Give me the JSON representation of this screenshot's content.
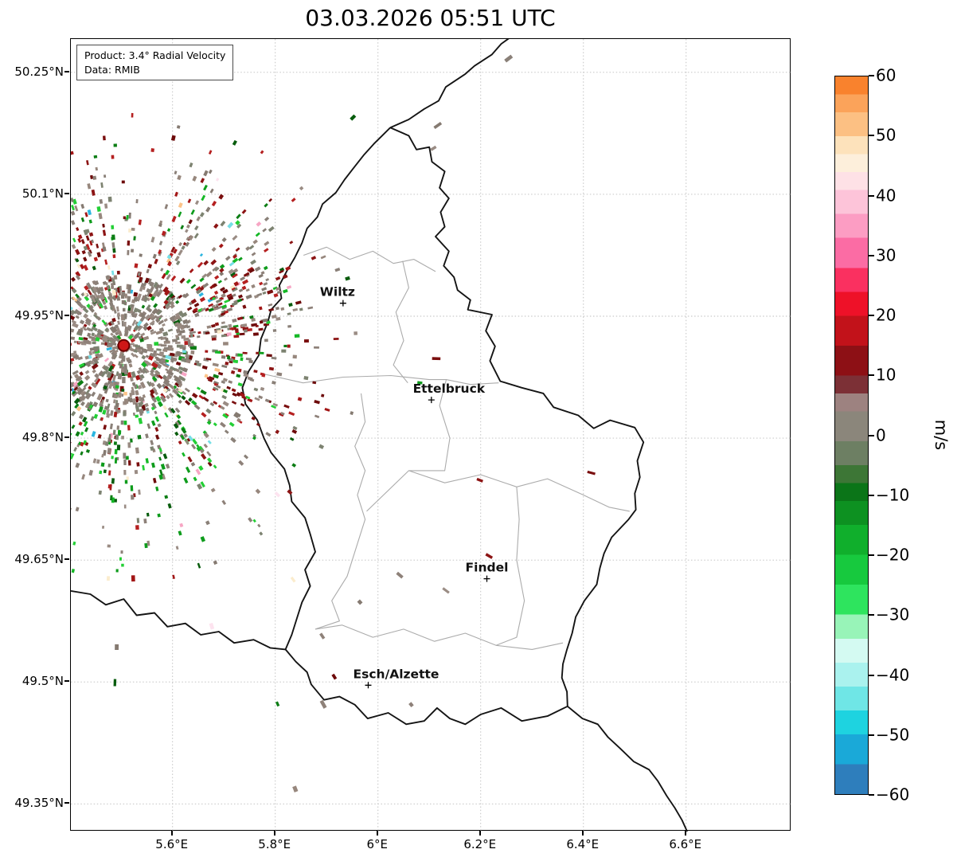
{
  "title": "03.03.2026 05:51 UTC",
  "info_box": {
    "product": "Product: 3.4° Radial Velocity",
    "data_source": "Data: RMIB"
  },
  "axes": {
    "lon_min": 5.402,
    "lon_max": 6.805,
    "lat_min": 49.316,
    "lat_max": 50.291,
    "x_ticks": [
      {
        "value": 5.6,
        "label": "5.6°E"
      },
      {
        "value": 5.8,
        "label": "5.8°E"
      },
      {
        "value": 6.0,
        "label": "6°E"
      },
      {
        "value": 6.2,
        "label": "6.2°E"
      },
      {
        "value": 6.4,
        "label": "6.4°E"
      },
      {
        "value": 6.6,
        "label": "6.6°E"
      }
    ],
    "y_ticks": [
      {
        "value": 50.25,
        "label": "50.25°N"
      },
      {
        "value": 50.1,
        "label": "50.1°N"
      },
      {
        "value": 49.95,
        "label": "49.95°N"
      },
      {
        "value": 49.8,
        "label": "49.8°N"
      },
      {
        "value": 49.65,
        "label": "49.65°N"
      },
      {
        "value": 49.5,
        "label": "49.5°N"
      },
      {
        "value": 49.35,
        "label": "49.35°N"
      }
    ]
  },
  "map": {
    "cities": [
      {
        "name": "Wiltz",
        "lat": 49.966,
        "lon": 5.932,
        "label_dx": -7
      },
      {
        "name": "Ettelbruck",
        "lat": 49.847,
        "lon": 6.104,
        "label_dx": 22
      },
      {
        "name": "Findel",
        "lat": 49.627,
        "lon": 6.212,
        "label_dx": 0
      },
      {
        "name": "Esch/Alzette",
        "lat": 49.496,
        "lon": 5.981,
        "label_dx": 35
      }
    ],
    "radar_site": {
      "lat": 49.914,
      "lon": 5.505,
      "dot_color": "#cf1717",
      "ring_color": "#6b0000"
    },
    "borders": {
      "luxembourg": [
        [
          50.182,
          6.024
        ],
        [
          50.172,
          6.06
        ],
        [
          50.155,
          6.075
        ],
        [
          50.158,
          6.1
        ],
        [
          50.14,
          6.105
        ],
        [
          50.128,
          6.13
        ],
        [
          50.108,
          6.12
        ],
        [
          50.095,
          6.138
        ],
        [
          50.078,
          6.122
        ],
        [
          50.06,
          6.13
        ],
        [
          50.048,
          6.112
        ],
        [
          50.03,
          6.138
        ],
        [
          50.012,
          6.128
        ],
        [
          49.998,
          6.148
        ],
        [
          49.982,
          6.155
        ],
        [
          49.97,
          6.18
        ],
        [
          49.958,
          6.175
        ],
        [
          49.952,
          6.222
        ],
        [
          49.932,
          6.21
        ],
        [
          49.913,
          6.228
        ],
        [
          49.895,
          6.218
        ],
        [
          49.87,
          6.238
        ],
        [
          49.862,
          6.28
        ],
        [
          49.855,
          6.322
        ],
        [
          49.838,
          6.342
        ],
        [
          49.828,
          6.39
        ],
        [
          49.812,
          6.42
        ],
        [
          49.822,
          6.452
        ],
        [
          49.813,
          6.5
        ],
        [
          49.795,
          6.517
        ],
        [
          49.772,
          6.505
        ],
        [
          49.752,
          6.51
        ],
        [
          49.732,
          6.5
        ],
        [
          49.712,
          6.502
        ],
        [
          49.7,
          6.488
        ],
        [
          49.678,
          6.455
        ],
        [
          49.658,
          6.44
        ],
        [
          49.64,
          6.432
        ],
        [
          49.62,
          6.426
        ],
        [
          49.6,
          6.402
        ],
        [
          49.58,
          6.385
        ],
        [
          49.56,
          6.378
        ],
        [
          49.54,
          6.368
        ],
        [
          49.522,
          6.36
        ],
        [
          49.505,
          6.358
        ],
        [
          49.488,
          6.368
        ],
        [
          49.47,
          6.369
        ],
        [
          49.458,
          6.33
        ],
        [
          49.452,
          6.28
        ],
        [
          49.468,
          6.24
        ],
        [
          49.46,
          6.2
        ],
        [
          49.448,
          6.17
        ],
        [
          49.455,
          6.14
        ],
        [
          49.468,
          6.115
        ],
        [
          49.452,
          6.09
        ],
        [
          49.448,
          6.055
        ],
        [
          49.462,
          6.02
        ],
        [
          49.455,
          5.98
        ],
        [
          49.472,
          5.955
        ],
        [
          49.482,
          5.925
        ],
        [
          49.478,
          5.895
        ],
        [
          49.497,
          5.87
        ],
        [
          49.512,
          5.862
        ],
        [
          49.525,
          5.84
        ],
        [
          49.54,
          5.82
        ],
        [
          49.558,
          5.832
        ],
        [
          49.578,
          5.842
        ],
        [
          49.598,
          5.852
        ],
        [
          49.618,
          5.868
        ],
        [
          49.638,
          5.858
        ],
        [
          49.66,
          5.878
        ],
        [
          49.682,
          5.868
        ],
        [
          49.702,
          5.858
        ],
        [
          49.722,
          5.832
        ],
        [
          49.742,
          5.828
        ],
        [
          49.762,
          5.818
        ],
        [
          49.782,
          5.792
        ],
        [
          49.8,
          5.778
        ],
        [
          49.822,
          5.765
        ],
        [
          49.842,
          5.742
        ],
        [
          49.862,
          5.736
        ],
        [
          49.882,
          5.748
        ],
        [
          49.902,
          5.768
        ],
        [
          49.922,
          5.772
        ],
        [
          49.942,
          5.785
        ],
        [
          49.958,
          5.792
        ],
        [
          49.972,
          5.812
        ],
        [
          49.988,
          5.808
        ],
        [
          50.005,
          5.822
        ],
        [
          50.022,
          5.838
        ],
        [
          50.04,
          5.852
        ],
        [
          50.058,
          5.862
        ],
        [
          50.072,
          5.882
        ],
        [
          50.088,
          5.892
        ],
        [
          50.102,
          5.918
        ],
        [
          50.118,
          5.935
        ],
        [
          50.132,
          5.952
        ],
        [
          50.148,
          5.972
        ],
        [
          50.162,
          5.992
        ],
        [
          50.172,
          6.008
        ],
        [
          50.182,
          6.024
        ]
      ],
      "be_de_north": [
        [
          50.182,
          6.024
        ],
        [
          50.192,
          6.06
        ],
        [
          50.205,
          6.09
        ],
        [
          50.215,
          6.118
        ],
        [
          50.232,
          6.132
        ],
        [
          50.248,
          6.17
        ],
        [
          50.258,
          6.188
        ],
        [
          50.272,
          6.222
        ],
        [
          50.285,
          6.24
        ],
        [
          50.295,
          6.262
        ]
      ],
      "fr_be_west": [
        [
          49.612,
          5.402
        ],
        [
          49.608,
          5.44
        ],
        [
          49.595,
          5.47
        ],
        [
          49.602,
          5.505
        ],
        [
          49.582,
          5.53
        ],
        [
          49.585,
          5.565
        ],
        [
          49.568,
          5.59
        ],
        [
          49.572,
          5.625
        ],
        [
          49.558,
          5.655
        ],
        [
          49.562,
          5.69
        ],
        [
          49.548,
          5.72
        ],
        [
          49.552,
          5.758
        ],
        [
          49.542,
          5.79
        ],
        [
          49.54,
          5.82
        ]
      ],
      "fr_de_south": [
        [
          49.47,
          6.369
        ],
        [
          49.455,
          6.398
        ],
        [
          49.448,
          6.428
        ],
        [
          49.432,
          6.448
        ],
        [
          49.418,
          6.472
        ],
        [
          49.402,
          6.498
        ],
        [
          49.392,
          6.528
        ],
        [
          49.378,
          6.545
        ],
        [
          49.36,
          6.562
        ],
        [
          49.345,
          6.578
        ],
        [
          49.33,
          6.592
        ],
        [
          49.316,
          6.602
        ]
      ]
    },
    "district_lines": [
      [
        [
          50.025,
          5.855
        ],
        [
          50.035,
          5.9
        ],
        [
          50.02,
          5.945
        ],
        [
          50.03,
          5.99
        ],
        [
          50.015,
          6.03
        ],
        [
          50.02,
          6.07
        ],
        [
          50.005,
          6.112
        ]
      ],
      [
        [
          50.018,
          6.048
        ],
        [
          49.985,
          6.06
        ],
        [
          49.955,
          6.035
        ],
        [
          49.92,
          6.05
        ],
        [
          49.89,
          6.03
        ],
        [
          49.868,
          6.058
        ]
      ],
      [
        [
          49.879,
          5.777
        ],
        [
          49.868,
          5.854
        ],
        [
          49.875,
          5.932
        ],
        [
          49.877,
          6.025
        ],
        [
          49.872,
          6.1
        ],
        [
          49.872,
          6.133
        ],
        [
          49.866,
          6.18
        ],
        [
          49.868,
          6.235
        ]
      ],
      [
        [
          49.855,
          5.967
        ],
        [
          49.82,
          5.975
        ],
        [
          49.79,
          5.955
        ],
        [
          49.76,
          5.975
        ],
        [
          49.73,
          5.96
        ],
        [
          49.7,
          5.975
        ],
        [
          49.67,
          5.96
        ],
        [
          49.63,
          5.94
        ],
        [
          49.6,
          5.91
        ],
        [
          49.575,
          5.925
        ],
        [
          49.565,
          5.878
        ]
      ],
      [
        [
          49.76,
          6.06
        ],
        [
          49.745,
          6.13
        ],
        [
          49.755,
          6.2
        ],
        [
          49.74,
          6.27
        ],
        [
          49.75,
          6.33
        ],
        [
          49.73,
          6.4
        ],
        [
          49.715,
          6.45
        ],
        [
          49.71,
          6.49
        ]
      ],
      [
        [
          49.872,
          6.133
        ],
        [
          49.84,
          6.12
        ],
        [
          49.8,
          6.14
        ],
        [
          49.76,
          6.13
        ],
        [
          49.76,
          6.06
        ],
        [
          49.71,
          5.978
        ]
      ],
      [
        [
          49.565,
          5.878
        ],
        [
          49.57,
          5.93
        ],
        [
          49.555,
          5.99
        ],
        [
          49.565,
          6.05
        ],
        [
          49.55,
          6.11
        ],
        [
          49.56,
          6.17
        ],
        [
          49.545,
          6.23
        ],
        [
          49.54,
          6.3
        ],
        [
          49.548,
          6.36
        ]
      ],
      [
        [
          49.74,
          6.27
        ],
        [
          49.7,
          6.275
        ],
        [
          49.65,
          6.27
        ],
        [
          49.6,
          6.285
        ],
        [
          49.555,
          6.27
        ],
        [
          49.545,
          6.23
        ]
      ]
    ]
  },
  "radar_field": {
    "gray_colors": [
      "#8e8179",
      "#97877d",
      "#857a71",
      "#7d8371",
      "#9a8c84",
      "#8a8078"
    ],
    "red_colors": [
      "#8c1414",
      "#a21616",
      "#7a0e0e",
      "#b52020",
      "#6d0a0a"
    ],
    "green_colors": [
      "#0c7d14",
      "#0e9c1c",
      "#15b826",
      "#085c0d",
      "#23cf35"
    ],
    "rare_colors": [
      "#76dfe6",
      "#f7a6c4",
      "#fcc48a",
      "#fbeccd",
      "#2bb5e0",
      "#fde3ef"
    ]
  },
  "colorbar": {
    "label": "m/s",
    "min": -60,
    "max": 60,
    "ticks": [
      {
        "value": 60,
        "label": "60"
      },
      {
        "value": 50,
        "label": "50"
      },
      {
        "value": 40,
        "label": "40"
      },
      {
        "value": 30,
        "label": "30"
      },
      {
        "value": 20,
        "label": "20"
      },
      {
        "value": 10,
        "label": "10"
      },
      {
        "value": 0,
        "label": "0"
      },
      {
        "value": -10,
        "label": "−10"
      },
      {
        "value": -20,
        "label": "−20"
      },
      {
        "value": -30,
        "label": "−30"
      },
      {
        "value": -40,
        "label": "−40"
      },
      {
        "value": -50,
        "label": "−50"
      },
      {
        "value": -60,
        "label": "−60"
      }
    ],
    "segments": [
      {
        "from": -60,
        "to": -55,
        "color": "#2e7ebc"
      },
      {
        "from": -55,
        "to": -50,
        "color": "#1aa9d8"
      },
      {
        "from": -50,
        "to": -46,
        "color": "#1ed3e0"
      },
      {
        "from": -46,
        "to": -42,
        "color": "#6fe6e6"
      },
      {
        "from": -42,
        "to": -38,
        "color": "#aaf2ee"
      },
      {
        "from": -38,
        "to": -34,
        "color": "#d4faf2"
      },
      {
        "from": -34,
        "to": -30,
        "color": "#98f4b8"
      },
      {
        "from": -30,
        "to": -25,
        "color": "#2ee45e"
      },
      {
        "from": -25,
        "to": -20,
        "color": "#17c93e"
      },
      {
        "from": -20,
        "to": -15,
        "color": "#10af2c"
      },
      {
        "from": -15,
        "to": -11,
        "color": "#0d9121"
      },
      {
        "from": -11,
        "to": -8,
        "color": "#0b7518"
      },
      {
        "from": -8,
        "to": -5,
        "color": "#3d7636"
      },
      {
        "from": -5,
        "to": -1,
        "color": "#6d7f63"
      },
      {
        "from": -1,
        "to": 4,
        "color": "#8b867b"
      },
      {
        "from": 4,
        "to": 7,
        "color": "#9d8280"
      },
      {
        "from": 7,
        "to": 10,
        "color": "#7c3036"
      },
      {
        "from": 10,
        "to": 15,
        "color": "#8d1015"
      },
      {
        "from": 15,
        "to": 20,
        "color": "#c2121a"
      },
      {
        "from": 20,
        "to": 24,
        "color": "#ee1128"
      },
      {
        "from": 24,
        "to": 28,
        "color": "#fa3060"
      },
      {
        "from": 28,
        "to": 33,
        "color": "#fb6ca4"
      },
      {
        "from": 33,
        "to": 37,
        "color": "#fc9dc3"
      },
      {
        "from": 37,
        "to": 41,
        "color": "#fdc4d9"
      },
      {
        "from": 41,
        "to": 44,
        "color": "#fee1e6"
      },
      {
        "from": 44,
        "to": 47,
        "color": "#fdefdb"
      },
      {
        "from": 47,
        "to": 50,
        "color": "#fde2bb"
      },
      {
        "from": 50,
        "to": 54,
        "color": "#fcc083"
      },
      {
        "from": 54,
        "to": 57,
        "color": "#fba35a"
      },
      {
        "from": 57,
        "to": 60,
        "color": "#f9822d"
      }
    ]
  }
}
